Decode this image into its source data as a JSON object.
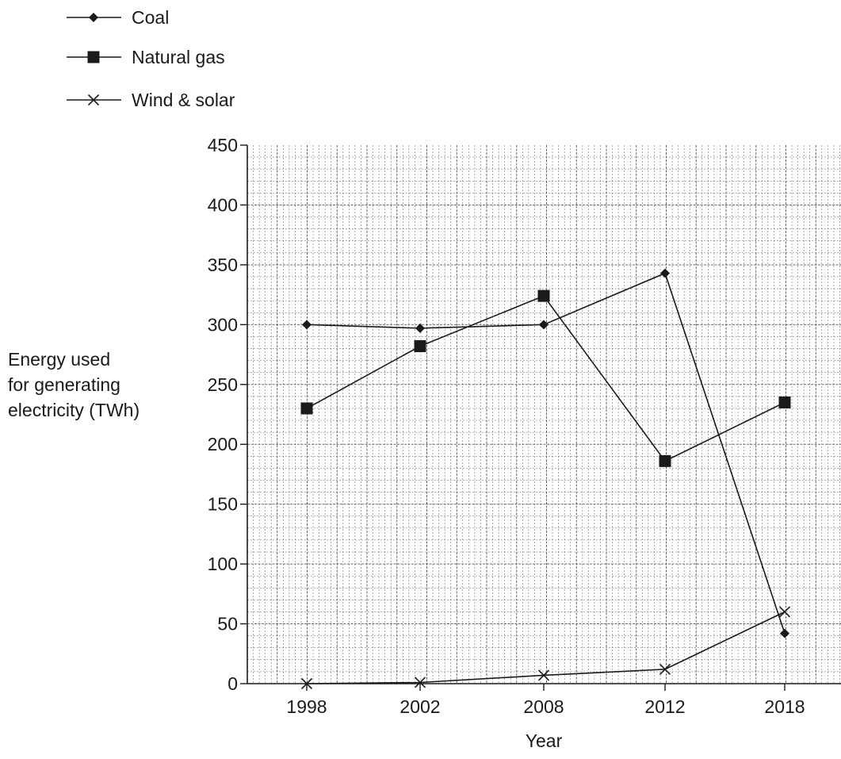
{
  "chart_data": {
    "type": "line",
    "categories": [
      "1998",
      "2002",
      "2008",
      "2012",
      "2018"
    ],
    "xlabel": "Year",
    "ylabel_lines": [
      "Energy used",
      "for generating",
      "electricity (TWh)"
    ],
    "ylim": [
      0,
      450
    ],
    "yticks": [
      0,
      50,
      100,
      150,
      200,
      250,
      300,
      350,
      400,
      450
    ],
    "grid": true,
    "legend_position": "top-left",
    "series": [
      {
        "name": "Coal",
        "marker": "diamond",
        "values": [
          300,
          297,
          300,
          343,
          42
        ]
      },
      {
        "name": "Natural gas",
        "marker": "square",
        "values": [
          230,
          282,
          324,
          186,
          235
        ]
      },
      {
        "name": "Wind & solar",
        "marker": "cross",
        "values": [
          0,
          1,
          7,
          12,
          60
        ]
      }
    ],
    "colors": {
      "line": "#1a1a1a",
      "grid": "#555555"
    }
  }
}
